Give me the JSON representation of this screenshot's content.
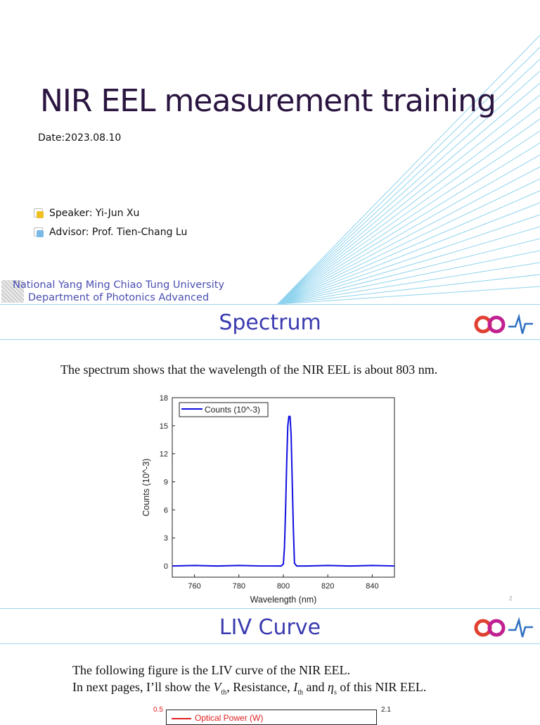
{
  "slide1": {
    "title": "NIR EEL measurement training",
    "date": "Date:2023.08.10",
    "bullets": [
      {
        "text": "Speaker: Yi-Jun Xu",
        "color": "#f0c020"
      },
      {
        "text": "Advisor: Prof. Tien-Chang Lu",
        "color": "#7ab8e6"
      }
    ],
    "university": "National Yang Ming Chiao Tung University",
    "department": "Department of Photonics Advanced"
  },
  "slide2": {
    "title": "Spectrum",
    "text": "The spectrum shows that the wavelength of the NIR EEL is about 803 nm.",
    "page_number": "2"
  },
  "slide3": {
    "title": "LIV Curve",
    "line1": "The following figure is the LIV curve of the NIR EEL.",
    "line2_a": "In next pages, I’ll show the ",
    "v": "V",
    "v_sub": "th",
    "line2_b": ", Resistance, ",
    "i": "I",
    "i_sub": "th",
    "line2_c": " and ",
    "eta": "η",
    "eta_sub": "s",
    "line2_d": " of  this NIR EEL.",
    "chart_partial": {
      "y_left_top": "0.5",
      "y_right_top": "2.1",
      "legend": "Optical Power (W)",
      "left_color": "#e02020"
    }
  },
  "chart_data": {
    "type": "line",
    "xlabel": "Wavelength (nm)",
    "ylabel": "Counts (10^-3)",
    "xlim": [
      750,
      850
    ],
    "ylim": [
      -1.2,
      18
    ],
    "xticks": [
      760,
      780,
      800,
      820,
      840
    ],
    "yticks": [
      0,
      3,
      6,
      9,
      12,
      15,
      18
    ],
    "legend": "top-left",
    "grid": false,
    "series": [
      {
        "name": "Counts (10^-3)",
        "color": "#1010e0",
        "x": [
          750,
          760,
          770,
          780,
          790,
          799,
          800,
          800.5,
          801,
          801.5,
          802,
          802.5,
          803,
          803.5,
          804,
          804.5,
          805,
          806,
          810,
          820,
          830,
          840,
          850
        ],
        "y": [
          0,
          0.05,
          0,
          0.05,
          0,
          0,
          0.2,
          2,
          6,
          11,
          15,
          16,
          16,
          14,
          9,
          4,
          0.3,
          0,
          0,
          0.05,
          0,
          0.05,
          0
        ]
      }
    ]
  }
}
